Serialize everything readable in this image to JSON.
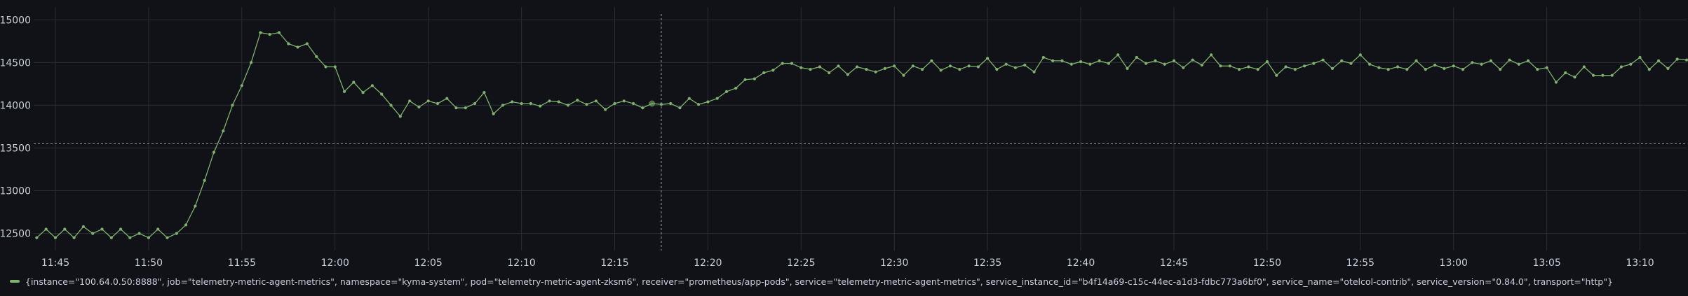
{
  "panel": {
    "background": "#111217"
  },
  "chart_data": {
    "type": "line",
    "x_unit": "time (HH:MM), one sample every 30s from 11:44:00",
    "x_ticks": [
      "11:45",
      "11:50",
      "11:55",
      "12:00",
      "12:05",
      "12:10",
      "12:15",
      "12:20",
      "12:25",
      "12:30",
      "12:35",
      "12:40",
      "12:45",
      "12:50",
      "12:55",
      "13:00",
      "13:05",
      "13:10"
    ],
    "y_ticks": [
      12500,
      13000,
      13500,
      14000,
      14500,
      15000
    ],
    "ylim": [
      12300,
      15150
    ],
    "xlim": [
      "11:43:50",
      "13:12:30"
    ],
    "grid": true,
    "threshold": 13550,
    "crosshair_time": "12:17:30",
    "highlight_time": "12:17:00",
    "series": [
      {
        "name": "{instance=\"100.64.0.50:8888\", job=\"telemetry-metric-agent-metrics\", namespace=\"kyma-system\", pod=\"telemetry-metric-agent-zksm6\", receiver=\"prometheus/app-pods\", service=\"telemetry-metric-agent-metrics\", service_instance_id=\"b4f14a69-c15c-44ec-a1d3-fdbc773a6bf0\", service_name=\"otelcol-contrib\", service_version=\"0.84.0\", transport=\"http\"}",
        "color": "#7eb26d",
        "values": [
          12450,
          12550,
          12450,
          12550,
          12450,
          12580,
          12500,
          12550,
          12450,
          12550,
          12450,
          12500,
          12450,
          12550,
          12450,
          12500,
          12600,
          12820,
          13120,
          13450,
          13700,
          14000,
          14230,
          14500,
          14850,
          14830,
          14850,
          14720,
          14680,
          14720,
          14570,
          14450,
          14450,
          14160,
          14270,
          14150,
          14230,
          14130,
          14000,
          13870,
          14050,
          13980,
          14050,
          14020,
          14080,
          13970,
          13970,
          14020,
          14150,
          13900,
          14000,
          14040,
          14020,
          14020,
          13990,
          14050,
          14040,
          14000,
          14060,
          14010,
          14050,
          13950,
          14020,
          14050,
          14020,
          13970,
          14020,
          14010,
          14020,
          13970,
          14080,
          14010,
          14040,
          14080,
          14160,
          14200,
          14300,
          14310,
          14380,
          14410,
          14490,
          14490,
          14440,
          14420,
          14450,
          14380,
          14460,
          14360,
          14450,
          14420,
          14390,
          14430,
          14460,
          14350,
          14460,
          14420,
          14520,
          14410,
          14460,
          14420,
          14460,
          14450,
          14550,
          14420,
          14480,
          14440,
          14470,
          14390,
          14560,
          14520,
          14520,
          14480,
          14510,
          14480,
          14520,
          14490,
          14590,
          14430,
          14560,
          14490,
          14520,
          14480,
          14520,
          14440,
          14530,
          14470,
          14590,
          14460,
          14460,
          14420,
          14450,
          14420,
          14510,
          14350,
          14450,
          14420,
          14460,
          14490,
          14530,
          14430,
          14520,
          14490,
          14590,
          14480,
          14440,
          14420,
          14450,
          14420,
          14520,
          14420,
          14470,
          14430,
          14460,
          14420,
          14500,
          14480,
          14520,
          14420,
          14530,
          14480,
          14520,
          14420,
          14440,
          14270,
          14380,
          14330,
          14450,
          14350,
          14350,
          14350,
          14450,
          14480,
          14560,
          14420,
          14520,
          14430,
          14540,
          14530
        ]
      }
    ]
  }
}
